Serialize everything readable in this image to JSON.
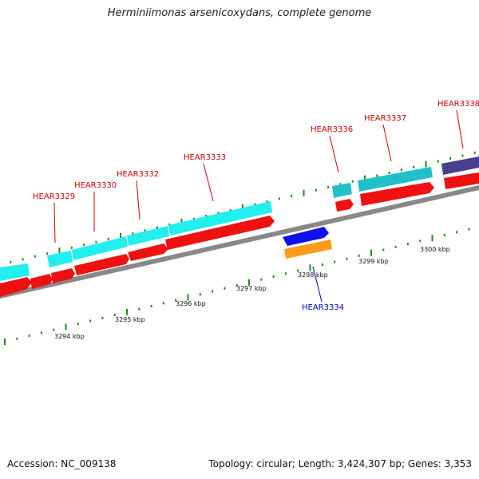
{
  "title": "Herminiimonas arsenicoxydans, complete genome",
  "footer": {
    "accession": "Accession: NC_009138",
    "stats": "Topology: circular; Length: 3,424,307 bp; Genes: 3,353"
  },
  "colors": {
    "backbone": "#888888",
    "tick": "#1a8a1a",
    "top_label": "#cc0000",
    "bottom_label": "#0000cc",
    "cds_forward": "#ee1111",
    "cds_reverse": "#1010ee",
    "cyan_gene": "#22eeee",
    "teal_gene": "#20c0c8",
    "orange_gene": "#ff9a1a",
    "purple_gene": "#4a3e8e"
  },
  "scale_labels": [
    "3294 kbp",
    "3295 kbp",
    "3296 kbp",
    "3297 kbp",
    "3298 kbp",
    "3299 kbp",
    "3300 kbp"
  ],
  "gene_labels_top": [
    "HEAR3329",
    "HEAR3330",
    "HEAR3332",
    "HEAR3333",
    "HEAR3336",
    "HEAR3337",
    "HEAR3338"
  ],
  "gene_labels_bottom": [
    "HEAR3334"
  ]
}
